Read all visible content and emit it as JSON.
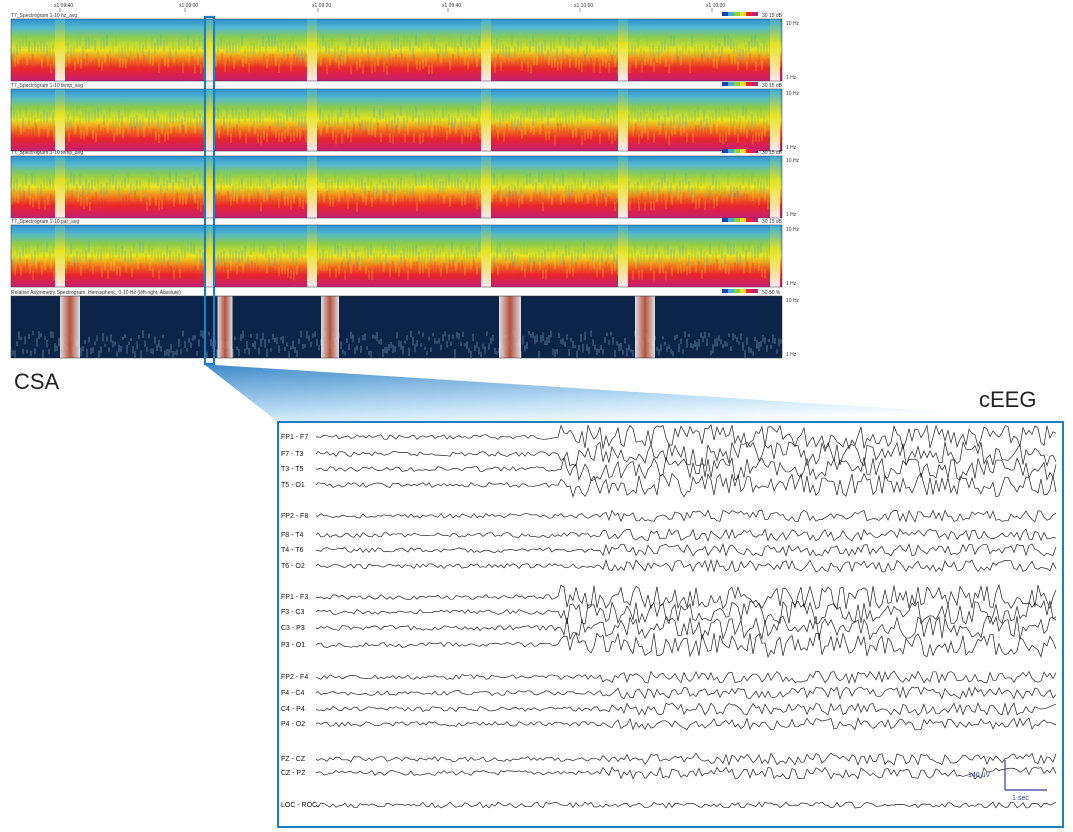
{
  "figure_labels": {
    "csa": "CSA",
    "ceeg": "cEEG"
  },
  "csa": {
    "time_ticks": [
      "x1 09:40",
      "x1 09:00",
      "x1 09:20",
      "x1 09:40",
      "x1 10:00",
      "x1 10:20"
    ],
    "panels": [
      {
        "title": "T7_Spectrogram 1-10 hz_avg",
        "scale": "30 15 dB",
        "hz_top": "10 Hz",
        "hz_bottom": "1 Hz"
      },
      {
        "title": "T7_Spectrogram 1-10 temp_avg",
        "scale": "30 15 dB",
        "hz_top": "10 Hz",
        "hz_bottom": "1 Hz"
      },
      {
        "title": "T7_Spectrogram 1-10 temp_avg",
        "scale": "30 15 dB",
        "hz_top": "10 Hz",
        "hz_bottom": "1 Hz"
      },
      {
        "title": "T7_Spectrogram 1-10 par_avg",
        "scale": "30 15 dB",
        "hz_top": "10 Hz",
        "hz_bottom": "1 Hz"
      },
      {
        "title": "Relative Asymmetry Spectrogram, Hemispheric, 0-10 Hz (left-right, Absolute)",
        "scale": "50 50 %",
        "hz_top": "10 Hz",
        "hz_bottom": "1 Hz"
      }
    ]
  },
  "ceeg": {
    "channels": [
      "FP1 - F7",
      "F7 - T3",
      "T3 - T5",
      "T5 - O1",
      "FP2 - F8",
      "F8 - T4",
      "T4 - T6",
      "T6 - O2",
      "FP1 - F3",
      "F3 - C3",
      "C3 - P3",
      "P3 - O1",
      "FP2 - F4",
      "F4 - C4",
      "C4 - P4",
      "P4 - O2",
      "FZ - CZ",
      "CZ - PZ",
      "LOC - ROC"
    ],
    "scale_amplitude": "140 uV",
    "scale_time": "1 sec"
  },
  "colors": {
    "csa_frame": "#1e7fc0",
    "spectrogram_bands": [
      "#d81e5b",
      "#e8262b",
      "#f2e81c",
      "#8ccd4c",
      "#3fb0d6",
      "#1f5fb4"
    ],
    "asymmetry_background": "#0b2447"
  }
}
